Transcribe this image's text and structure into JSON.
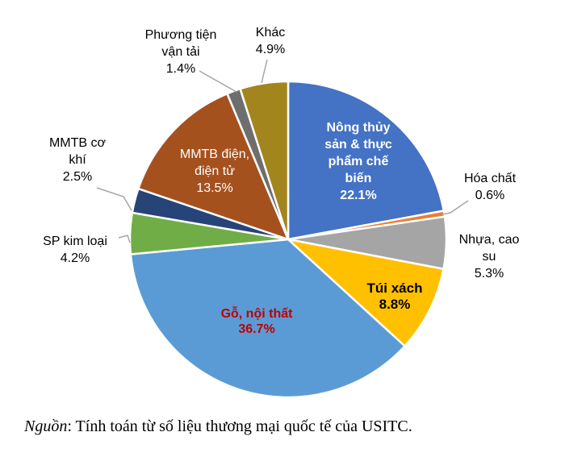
{
  "chart_data": {
    "type": "pie",
    "title": "",
    "start_angle_deg": 0,
    "direction": "clockwise",
    "legend": "none",
    "slices": [
      {
        "label": "Nông thủy sản & thực phẩm chế biến",
        "value": 22.1,
        "color": "#4472C4",
        "label_position": "inside"
      },
      {
        "label": "Hóa chất",
        "value": 0.6,
        "color": "#ED7D31",
        "label_position": "outside"
      },
      {
        "label": "Nhựa, cao su",
        "value": 5.3,
        "color": "#A5A5A5",
        "label_position": "outside"
      },
      {
        "label": "Túi xách",
        "value": 8.8,
        "color": "#FFC000",
        "label_position": "inside"
      },
      {
        "label": "Gỗ, nội thất",
        "value": 36.7,
        "color": "#5B9BD5",
        "label_position": "inside"
      },
      {
        "label": "SP kim loại",
        "value": 4.2,
        "color": "#70AD47",
        "label_position": "outside"
      },
      {
        "label": "MMTB cơ khí",
        "value": 2.5,
        "color": "#264478",
        "label_position": "outside"
      },
      {
        "label": "MMTB điện, điện tử",
        "value": 13.5,
        "color": "#A5511E",
        "label_position": "inside"
      },
      {
        "label": "Phương tiện vận tải",
        "value": 1.4,
        "color": "#6E6E6E",
        "label_position": "outside"
      },
      {
        "label": "Khác",
        "value": 4.9,
        "color": "#A2851C",
        "label_position": "outside"
      }
    ],
    "source_note": "Nguồn: Tính toán từ số liệu thương mại quốc tế của USITC."
  },
  "labels": {
    "nong_thuy_san": "Nông thủy\nsản & thực\nphẩm chế\nbiến\n22.1%",
    "hoa_chat": "Hóa chất\n0.6%",
    "nhua_cao_su": "Nhựa, cao\nsu\n5.3%",
    "tui_xach": "Túi xách\n8.8%",
    "go_noi_that": "Gỗ, nội thất\n36.7%",
    "sp_kim_loai": "SP kim loại\n4.2%",
    "mmtb_co_khi": "MMTB cơ\nkhí\n2.5%",
    "mmtb_dien_dien_tu": "MMTB điện,\nđiện tử\n13.5%",
    "phuong_tien_van_tai": "Phương tiện\nvận tải\n1.4%",
    "khac": "Khác\n4.9%"
  },
  "source": {
    "prefix": "Nguồn",
    "rest": ": Tính toán từ số liệu thương mại quốc tế của USITC."
  },
  "colors": {
    "background": "#FFFFFF",
    "inside_label_light": "#FFFFFF",
    "inside_label_dark": "#000000",
    "go_noi_that_label": "#C00000",
    "leader_line": "#A6A6A6",
    "slice_border": "#FFFFFF"
  }
}
